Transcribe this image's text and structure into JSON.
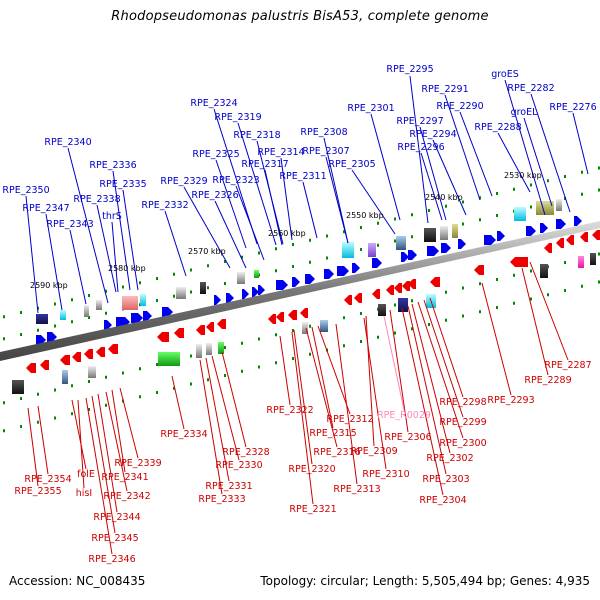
{
  "title": "Rhodopseudomonas palustris BisA53, complete genome",
  "footer": {
    "accession": "Accession: NC_008435",
    "summary": "Topology: circular; Length: 5,505,494 bp; Genes: 4,935"
  },
  "colors": {
    "forward_label": "#0000c8",
    "reverse_label": "#cc0000",
    "rna_label": "#ff88bb",
    "backbone": "#888888",
    "tick": "#008800"
  },
  "kbp_ticks": [
    "2530 kbp",
    "2540 kbp",
    "2550 kbp",
    "2560 kbp",
    "2570 kbp",
    "2580 kbp",
    "2590 kbp"
  ],
  "forward_labels": [
    "RPE_2295",
    "groES",
    "RPE_2282",
    "RPE_2276",
    "RPE_2291",
    "groEL",
    "RPE_2301",
    "RPE_2290",
    "RPE_2297",
    "RPE_2288",
    "RPE_2294",
    "RPE_2296",
    "RPE_2324",
    "RPE_2319",
    "RPE_2318",
    "RPE_2308",
    "RPE_2314",
    "RPE_2307",
    "RPE_2340",
    "RPE_2325",
    "RPE_2317",
    "RPE_2305",
    "RPE_2336",
    "RPE_2323",
    "RPE_2311",
    "RPE_2329",
    "RPE_2335",
    "RPE_2326",
    "RPE_2350",
    "RPE_2338",
    "RPE_2332",
    "RPE_2347",
    "thrS",
    "RPE_2343"
  ],
  "reverse_labels": [
    "RPE_2287",
    "RPE_2289",
    "RPE_2293",
    "RPE_2298",
    "RPE_2299",
    "RPE_2300",
    "RPE_2302",
    "RPE_2303",
    "RPE_2304",
    "RPE_2306",
    "RPE_2309",
    "RPE_2310",
    "RPE_2312",
    "RPE_2313",
    "RPE_2315",
    "RPE_2316",
    "RPE_2320",
    "RPE_2321",
    "RPE_2322",
    "RPE_2328",
    "RPE_2330",
    "RPE_2331",
    "RPE_2333",
    "RPE_2334",
    "RPE_2339",
    "RPE_2341",
    "RPE_2342",
    "RPE_2344",
    "RPE_2345",
    "RPE_2346",
    "RPE_2354",
    "RPE_2355",
    "folE",
    "hisI"
  ],
  "rna_labels": [
    "RPE_R0029"
  ]
}
